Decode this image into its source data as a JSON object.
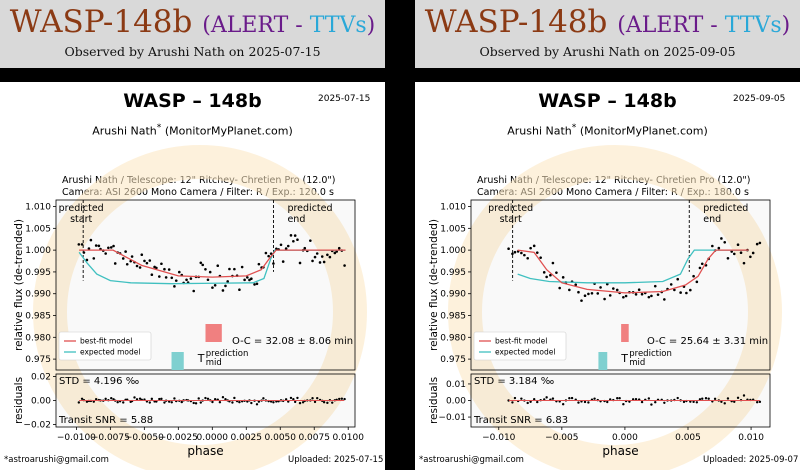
{
  "panels": [
    {
      "banner": {
        "object": "WASP-148b",
        "alert": "ALERT",
        "dash": " - ",
        "ttvs": "TTVs",
        "observed": "Observed by Arushi Nath on 2025-07-15"
      },
      "title": "WASP – 148b",
      "date": "2025-07-15",
      "author": "Arushi Nath",
      "author_mark": "*",
      "author_site": "(MonitorMyPlanet.com)",
      "info_line1": "Arushi Nath / Telescope: 12\" Ritchey- Chretien Pro (12.0\")",
      "info_line2": "Camera: ASI 2600 Mono Camera / Filter: R / Exp.: 120.0 s",
      "email": "*astroarushi@gmail.com",
      "uploaded": "Uploaded: 2025-07-15",
      "oc": "O-C = 32.08 ± 8.06 min",
      "std": "STD = 4.196 ‰",
      "snr": "Transit SNR = 5.88",
      "chart_data": {
        "type": "scatter",
        "xlabel": "phase",
        "ylabel_top": "relative flux (de-trended)",
        "ylabel_bottom": "residuals",
        "xlim": [
          -0.0115,
          0.0105
        ],
        "xticks": [
          -0.01,
          -0.0075,
          -0.005,
          -0.0025,
          0.0,
          0.0025,
          0.005,
          0.0075,
          0.01
        ],
        "xtick_labels": [
          "−0.0100",
          "−0.0075",
          "−0.0050",
          "−0.0025",
          "0.0000",
          "0.0025",
          "0.0050",
          "0.0075",
          "0.0100"
        ],
        "ylim_top": [
          0.9725,
          1.0115
        ],
        "yticks_top": [
          0.975,
          0.98,
          0.985,
          0.99,
          0.995,
          1.0,
          1.005,
          1.01
        ],
        "ytick_labels_top": [
          "0.975",
          "0.980",
          "0.985",
          "0.990",
          "0.995",
          "1.000",
          "1.005",
          "1.010"
        ],
        "ylim_bottom": [
          -0.022,
          0.022
        ],
        "yticks_bottom": [
          -0.02,
          0.0,
          0.02
        ],
        "ytick_labels_bottom": [
          "−0.02",
          "0.00",
          "0.02"
        ],
        "predicted_start": -0.0095,
        "predicted_end": 0.0045,
        "predicted_start_label": "predicted\nstart",
        "predicted_end_label": "predicted\nend",
        "prediction_mid_label": "prediction\nmid",
        "t_marker_label": "T",
        "expected_bar": [
          -0.003,
          -0.0021
        ],
        "best_fit_bar": [
          -0.0005,
          0.0007
        ],
        "legend": [
          "best-fit model",
          "expected model"
        ],
        "legend_loc": "lower left",
        "colors": {
          "best_fit": "#e05050",
          "expected": "#40c0c0",
          "points": "#000000",
          "bar_expected": "#7fd0d0",
          "bar_best": "#f08080"
        },
        "best_fit": {
          "x": [
            -0.0098,
            -0.0073,
            -0.0052,
            -0.0025,
            0.0,
            0.0025,
            0.0036,
            0.0043,
            0.0047,
            0.0098
          ],
          "y": [
            1.0,
            1.0,
            0.9965,
            0.9941,
            0.9938,
            0.9941,
            0.9955,
            0.9985,
            1.0,
            1.0
          ]
        },
        "expected": {
          "x": [
            -0.0098,
            -0.0092,
            -0.0085,
            -0.0075,
            -0.006,
            -0.003,
            0.0,
            0.003,
            0.0038,
            0.0043,
            0.0046,
            0.0098
          ],
          "y": [
            0.9995,
            0.997,
            0.9945,
            0.993,
            0.9925,
            0.9923,
            0.9924,
            0.9925,
            0.9935,
            0.998,
            1.0,
            1.0
          ]
        },
        "seed": 7,
        "n_points": 110,
        "flux_noise": 0.0042,
        "residual_noise": 0.0042
      }
    },
    {
      "banner": {
        "object": "WASP-148b",
        "alert": "ALERT",
        "dash": " - ",
        "ttvs": "TTVs",
        "observed": "Observed by Arushi Nath on 2025-09-05"
      },
      "title": "WASP – 148b",
      "date": "2025-09-05",
      "author": "Arushi Nath",
      "author_mark": "*",
      "author_site": "(MonitorMyPlanet.com)",
      "info_line1": "Arushi Nath / Telescope: 12\" Ritchey- Chretien Pro (12.0\")",
      "info_line2": "Camera: ASI 2600 Mono Camera / Filter: R / Exp.: 180.0 s",
      "email": "*astroarushi@gmail.com",
      "uploaded": "Uploaded: 2025-09-07",
      "oc": "O-C = 25.64 ± 3.31 min",
      "std": "STD = 3.184 ‰",
      "snr": "Transit SNR = 6.83",
      "chart_data": {
        "type": "scatter",
        "xlabel": "phase",
        "ylabel_top": "relative flux (de-trended)",
        "ylabel_bottom": "residuals",
        "xlim": [
          -0.0122,
          0.0115
        ],
        "xticks": [
          -0.01,
          -0.005,
          0.0,
          0.005,
          0.01
        ],
        "xtick_labels": [
          "−0.010",
          "−0.005",
          "0.000",
          "0.005",
          "0.010"
        ],
        "ylim_top": [
          0.9725,
          1.0115
        ],
        "yticks_top": [
          0.975,
          0.98,
          0.985,
          0.99,
          0.995,
          1.0,
          1.005,
          1.01
        ],
        "ytick_labels_top": [
          "0.975",
          "0.980",
          "0.985",
          "0.990",
          "0.995",
          "1.000",
          "1.005",
          "1.010"
        ],
        "ylim_bottom": [
          -0.016,
          0.016
        ],
        "yticks_bottom": [
          -0.01,
          0.0,
          0.01
        ],
        "ytick_labels_bottom": [
          "−0.01",
          "0.00",
          "0.01"
        ],
        "predicted_start": -0.0089,
        "predicted_end": 0.0051,
        "predicted_start_label": "predicted\nstart",
        "predicted_end_label": "predicted\nend",
        "prediction_mid_label": "prediction\nmid",
        "t_marker_label": "T",
        "expected_bar": [
          -0.0021,
          -0.0014
        ],
        "best_fit_bar": [
          -0.0003,
          0.0003
        ],
        "legend": [
          "best-fit model",
          "expected model"
        ],
        "legend_loc": "lower left",
        "colors": {
          "best_fit": "#e05050",
          "expected": "#40c0c0",
          "points": "#000000",
          "bar_expected": "#7fd0d0",
          "bar_best": "#f08080"
        },
        "best_fit": {
          "x": [
            -0.0085,
            -0.0072,
            -0.0062,
            -0.005,
            -0.003,
            0.0,
            0.003,
            0.0048,
            0.0058,
            0.0066,
            0.0072,
            0.0098
          ],
          "y": [
            1.0,
            0.9995,
            0.9955,
            0.9925,
            0.991,
            0.9902,
            0.9905,
            0.992,
            0.994,
            0.998,
            1.0,
            1.0
          ]
        },
        "expected": {
          "x": [
            -0.0085,
            -0.0075,
            -0.006,
            -0.003,
            0.0,
            0.003,
            0.0044,
            0.005,
            0.0055,
            0.006,
            0.0098
          ],
          "y": [
            0.9945,
            0.9935,
            0.9928,
            0.9925,
            0.9925,
            0.9928,
            0.9945,
            0.998,
            1.0,
            1.0,
            1.0
          ]
        },
        "seed": 23,
        "n_points": 80,
        "flux_noise": 0.0032,
        "residual_noise": 0.0032
      }
    }
  ]
}
